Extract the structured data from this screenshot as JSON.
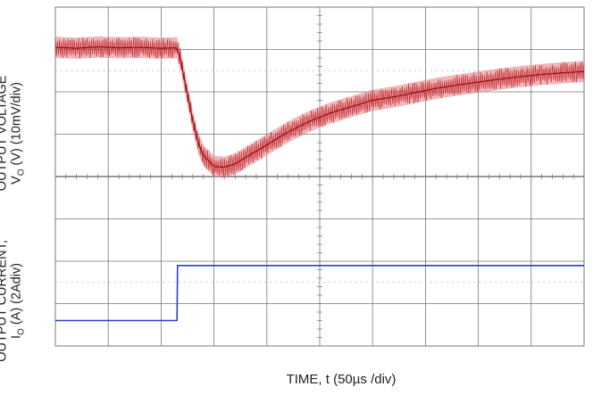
{
  "chart_data": [
    {
      "type": "line",
      "panel": "top",
      "ylabel_line1": "OUTPUT VOLTAGE",
      "ylabel_line2_prefix": "V",
      "ylabel_line2_sub": "O",
      "ylabel_line2_suffix": " (V) (10mV/div)",
      "x_unit": "µs",
      "y_unit": "mV",
      "xlim": [
        0,
        500
      ],
      "ylim": [
        -20,
        20
      ],
      "grid": true,
      "series": [
        {
          "color": "#c0141c",
          "x": [
            0,
            20,
            40,
            60,
            80,
            100,
            115,
            118,
            122,
            126,
            130,
            135,
            140,
            150,
            160,
            170,
            180,
            200,
            220,
            240,
            260,
            280,
            300,
            320,
            340,
            360,
            380,
            400,
            420,
            440,
            460,
            480,
            500
          ],
          "y": [
            10.5,
            10.3,
            10.6,
            10.4,
            10.5,
            10.3,
            10.4,
            8.0,
            3.0,
            -2.0,
            -7.0,
            -12.0,
            -15.0,
            -17.6,
            -17.8,
            -17.0,
            -15.5,
            -12.5,
            -9.5,
            -7.0,
            -5.0,
            -3.5,
            -2.0,
            -1.2,
            -0.2,
            0.8,
            1.6,
            2.3,
            3.0,
            3.6,
            4.1,
            4.5,
            4.8
          ],
          "ripple_mV": 2.5
        }
      ]
    },
    {
      "type": "line",
      "panel": "bottom",
      "ylabel_line1": "OUTPUT CURRENT,",
      "ylabel_line2_prefix": "I",
      "ylabel_line2_sub": "O",
      "ylabel_line2_suffix": " (A) (2Adiv)",
      "x_unit": "µs",
      "y_unit": "A",
      "xlim": [
        0,
        500
      ],
      "ylim": [
        0,
        8
      ],
      "grid": true,
      "series": [
        {
          "color": "#2a3fc8",
          "x": [
            0,
            115,
            115.5,
            500
          ],
          "y": [
            1.2,
            1.2,
            3.8,
            3.8
          ]
        }
      ]
    }
  ],
  "xlabel": "TIME, t (50µs /div)",
  "colors": {
    "grid": "#777777",
    "voltage_trace": "#c0141c",
    "voltage_envelope": "#e07b80",
    "current_trace": "#2a3fc8"
  }
}
